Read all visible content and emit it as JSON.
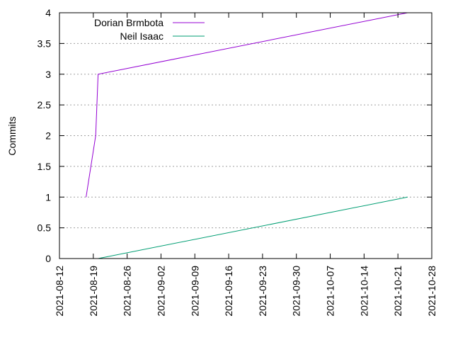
{
  "chart_data": {
    "type": "line",
    "title": "",
    "xlabel": "",
    "ylabel": "Commits",
    "x_ticks": [
      "2021-08-12",
      "2021-08-19",
      "2021-08-26",
      "2021-09-02",
      "2021-09-09",
      "2021-09-16",
      "2021-09-23",
      "2021-09-30",
      "2021-10-07",
      "2021-10-14",
      "2021-10-21",
      "2021-10-28"
    ],
    "y_ticks": [
      "0",
      "0.5",
      "1",
      "1.5",
      "2",
      "2.5",
      "3",
      "3.5",
      "4"
    ],
    "xlim": [
      "2021-08-12",
      "2021-10-28"
    ],
    "ylim": [
      0,
      4
    ],
    "grid": "horizontal dotted",
    "legend_position": "top-left",
    "series": [
      {
        "name": "Dorian Brmbota",
        "color": "#9400d3",
        "points": [
          {
            "x": "2021-08-17 12:00",
            "y": 1
          },
          {
            "x": "2021-08-19 12:00",
            "y": 2
          },
          {
            "x": "2021-08-20 00:00",
            "y": 3
          },
          {
            "x": "2021-10-23 00:00",
            "y": 4
          }
        ]
      },
      {
        "name": "Neil Isaac",
        "color": "#009e73",
        "points": [
          {
            "x": "2021-08-20 00:00",
            "y": 0
          },
          {
            "x": "2021-10-23 00:00",
            "y": 1
          }
        ]
      }
    ]
  }
}
